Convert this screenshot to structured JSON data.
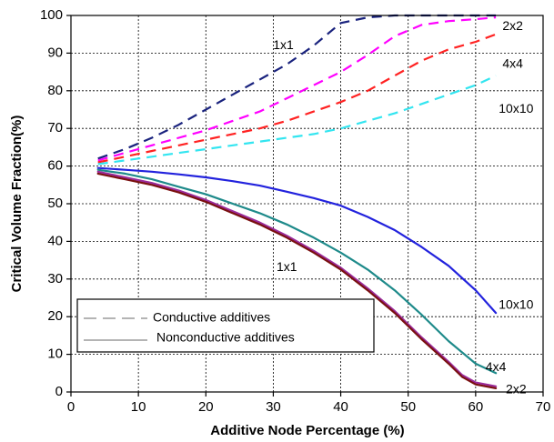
{
  "chart_data": {
    "type": "line",
    "title": "",
    "xlabel": "Additive Node Percentage (%)",
    "ylabel": "Critical Volume Fraction(%)",
    "xlim": [
      0,
      70
    ],
    "ylim": [
      0,
      100
    ],
    "xticks": [
      0,
      10,
      20,
      30,
      40,
      50,
      60,
      70
    ],
    "yticks": [
      0,
      10,
      20,
      30,
      40,
      50,
      60,
      70,
      80,
      90,
      100
    ],
    "grid": true,
    "legend": {
      "placement": "bottom-left",
      "entries": [
        {
          "label": "Conductive additives",
          "style": "dashed",
          "color": "#888888"
        },
        {
          "label": "Nonconductive additives",
          "style": "solid",
          "color": "#888888"
        }
      ]
    },
    "annotations": [
      {
        "text": "1x1",
        "x": 31.5,
        "y": 92
      },
      {
        "text": "2x2",
        "x": 65.5,
        "y": 97
      },
      {
        "text": "4x4",
        "x": 65.5,
        "y": 87
      },
      {
        "text": "10x10",
        "x": 66,
        "y": 75
      },
      {
        "text": "1x1",
        "x": 32,
        "y": 33
      },
      {
        "text": "10x10",
        "x": 66,
        "y": 23
      },
      {
        "text": "4x4",
        "x": 63,
        "y": 6.5
      },
      {
        "text": "2x2",
        "x": 66,
        "y": 0.5
      }
    ],
    "series": [
      {
        "style": "dashed",
        "color": "#1a237e",
        "x": [
          4,
          8,
          12,
          16,
          20,
          24,
          28,
          32,
          36,
          40,
          44,
          48,
          52,
          56,
          60,
          63
        ],
        "y": [
          62,
          64.5,
          67.5,
          71,
          75,
          79,
          83,
          87,
          92,
          98,
          99.5,
          100,
          100,
          100,
          100,
          100
        ]
      },
      {
        "style": "dashed",
        "color": "#ff00ff",
        "x": [
          4,
          8,
          12,
          16,
          20,
          24,
          28,
          32,
          36,
          40,
          44,
          48,
          52,
          56,
          60,
          63
        ],
        "y": [
          61.5,
          63.5,
          65.5,
          67.5,
          69.5,
          72,
          74.5,
          78,
          81.5,
          85,
          89.5,
          94.5,
          97.5,
          98.5,
          99,
          99.5
        ]
      },
      {
        "style": "dashed",
        "color": "#ff2222",
        "x": [
          4,
          8,
          12,
          16,
          20,
          24,
          28,
          32,
          36,
          40,
          44,
          48,
          52,
          56,
          60,
          63
        ],
        "y": [
          61,
          62.5,
          64,
          65.5,
          67,
          68.5,
          70,
          72,
          74.5,
          77,
          80,
          84,
          88,
          91,
          93,
          95
        ]
      },
      {
        "style": "dashed",
        "color": "#33e5f0",
        "x": [
          4,
          8,
          12,
          16,
          20,
          24,
          28,
          32,
          36,
          40,
          44,
          48,
          52,
          56,
          60,
          63
        ],
        "y": [
          60.5,
          61.5,
          62.5,
          63.5,
          64.5,
          65.5,
          66.5,
          67.5,
          68.5,
          70,
          72,
          74,
          76.5,
          79,
          81.5,
          84
        ]
      },
      {
        "style": "solid",
        "color": "#2222dd",
        "x": [
          4,
          8,
          12,
          16,
          20,
          24,
          28,
          32,
          36,
          40,
          44,
          48,
          52,
          56,
          60,
          63
        ],
        "y": [
          59.5,
          59,
          58.5,
          57.8,
          57,
          56,
          54.8,
          53.2,
          51.5,
          49.5,
          46.5,
          43,
          38.5,
          33.5,
          27,
          21
        ]
      },
      {
        "style": "solid",
        "color": "#1e8a8a",
        "x": [
          4,
          8,
          12,
          16,
          20,
          24,
          28,
          32,
          36,
          40,
          44,
          48,
          52,
          56,
          60,
          63
        ],
        "y": [
          59,
          58,
          56.5,
          54.5,
          52.5,
          50,
          47.5,
          44.5,
          41,
          37,
          32.5,
          27,
          20.5,
          13.5,
          7.5,
          5
        ]
      },
      {
        "style": "solid",
        "color": "#9a2a9a",
        "x": [
          4,
          8,
          12,
          16,
          20,
          24,
          28,
          32,
          36,
          40,
          44,
          48,
          52,
          56,
          58,
          60,
          63
        ],
        "y": [
          58.5,
          57,
          55.5,
          53.5,
          51,
          48,
          45,
          41.5,
          37.5,
          33,
          27.5,
          21.5,
          14.5,
          8,
          4.5,
          2.5,
          1.5
        ]
      },
      {
        "style": "solid",
        "color": "#7a1010",
        "x": [
          4,
          8,
          12,
          16,
          20,
          24,
          28,
          32,
          36,
          40,
          44,
          48,
          52,
          56,
          58,
          60,
          63
        ],
        "y": [
          58,
          56.5,
          55,
          53,
          50.5,
          47.5,
          44.5,
          41,
          37,
          32.5,
          27,
          21,
          14,
          7.5,
          4,
          2,
          1
        ]
      }
    ]
  }
}
